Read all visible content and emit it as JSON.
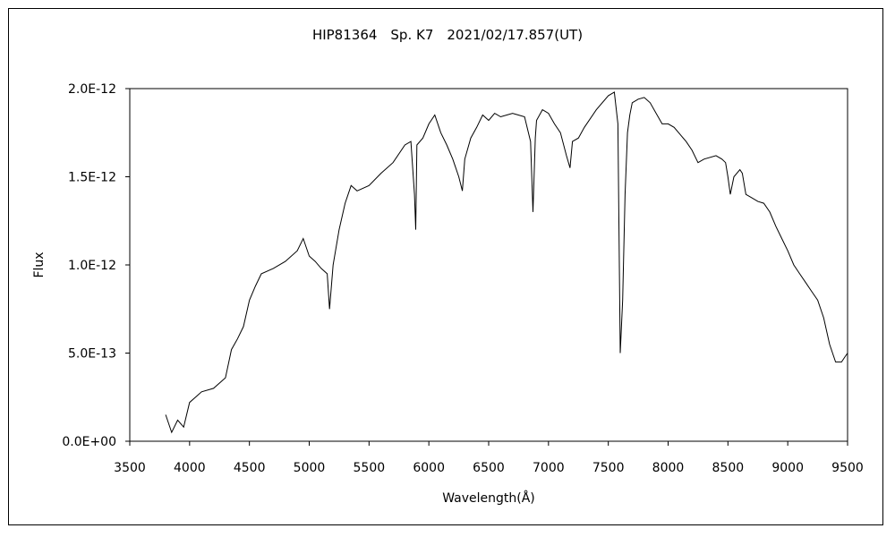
{
  "chart_data": {
    "type": "line",
    "title": "HIP81364　Sp. K7　2021/02/17.857(UT)",
    "xlabel": "Wavelength(Å)",
    "ylabel": "Flux",
    "xlim": [
      3500,
      9500
    ],
    "ylim": [
      0,
      2e-12
    ],
    "x_ticks": [
      3500,
      4000,
      4500,
      5000,
      5500,
      6000,
      6500,
      7000,
      7500,
      8000,
      8500,
      9000,
      9500
    ],
    "x_tick_labels": [
      "3500",
      "4000",
      "4500",
      "5000",
      "5500",
      "6000",
      "6500",
      "7000",
      "7500",
      "8000",
      "8500",
      "9000",
      "9500"
    ],
    "y_ticks": [
      0,
      5e-13,
      1e-12,
      1.5e-12,
      2e-12
    ],
    "y_tick_labels": [
      "0.0E+00",
      "5.0E-13",
      "1.0E-12",
      "1.5E-12",
      "2.0E-12"
    ],
    "grid": false,
    "line_color": "#000000",
    "series": [
      {
        "name": "",
        "x": [
          3800,
          3850,
          3900,
          3950,
          4000,
          4100,
          4200,
          4300,
          4350,
          4400,
          4450,
          4500,
          4550,
          4600,
          4700,
          4800,
          4900,
          4950,
          5000,
          5050,
          5100,
          5150,
          5170,
          5200,
          5250,
          5300,
          5350,
          5400,
          5500,
          5600,
          5700,
          5800,
          5850,
          5880,
          5890,
          5900,
          5950,
          6000,
          6050,
          6100,
          6150,
          6200,
          6250,
          6280,
          6300,
          6350,
          6400,
          6450,
          6500,
          6550,
          6600,
          6700,
          6800,
          6850,
          6870,
          6890,
          6900,
          6950,
          7000,
          7050,
          7100,
          7150,
          7180,
          7200,
          7250,
          7300,
          7400,
          7500,
          7550,
          7580,
          7600,
          7620,
          7640,
          7660,
          7680,
          7700,
          7750,
          7800,
          7850,
          7900,
          7950,
          8000,
          8050,
          8100,
          8150,
          8200,
          8250,
          8300,
          8400,
          8450,
          8480,
          8500,
          8520,
          8550,
          8600,
          8620,
          8650,
          8700,
          8750,
          8800,
          8850,
          8900,
          8950,
          9000,
          9050,
          9100,
          9150,
          9200,
          9250,
          9300,
          9350,
          9400,
          9450,
          9480,
          9500
        ],
        "y": [
          1.5e-13,
          5e-14,
          1.2e-13,
          8e-14,
          2.2e-13,
          2.8e-13,
          3e-13,
          3.6e-13,
          5.2e-13,
          5.8e-13,
          6.5e-13,
          8e-13,
          8.8e-13,
          9.5e-13,
          9.8e-13,
          1.02e-12,
          1.08e-12,
          1.15e-12,
          1.05e-12,
          1.02e-12,
          9.8e-13,
          9.5e-13,
          7.5e-13,
          1e-12,
          1.2e-12,
          1.35e-12,
          1.45e-12,
          1.42e-12,
          1.45e-12,
          1.52e-12,
          1.58e-12,
          1.68e-12,
          1.7e-12,
          1.4e-12,
          1.2e-12,
          1.68e-12,
          1.72e-12,
          1.8e-12,
          1.85e-12,
          1.75e-12,
          1.68e-12,
          1.6e-12,
          1.5e-12,
          1.42e-12,
          1.6e-12,
          1.72e-12,
          1.78e-12,
          1.85e-12,
          1.82e-12,
          1.86e-12,
          1.84e-12,
          1.86e-12,
          1.84e-12,
          1.7e-12,
          1.3e-12,
          1.72e-12,
          1.82e-12,
          1.88e-12,
          1.86e-12,
          1.8e-12,
          1.75e-12,
          1.62e-12,
          1.55e-12,
          1.7e-12,
          1.72e-12,
          1.78e-12,
          1.88e-12,
          1.96e-12,
          1.98e-12,
          1.8e-12,
          5e-13,
          8e-13,
          1.4e-12,
          1.75e-12,
          1.85e-12,
          1.92e-12,
          1.94e-12,
          1.95e-12,
          1.92e-12,
          1.86e-12,
          1.8e-12,
          1.8e-12,
          1.78e-12,
          1.74e-12,
          1.7e-12,
          1.65e-12,
          1.58e-12,
          1.6e-12,
          1.62e-12,
          1.6e-12,
          1.58e-12,
          1.5e-12,
          1.4e-12,
          1.5e-12,
          1.54e-12,
          1.52e-12,
          1.4e-12,
          1.38e-12,
          1.36e-12,
          1.35e-12,
          1.3e-12,
          1.22e-12,
          1.15e-12,
          1.08e-12,
          1e-12,
          9.5e-13,
          9e-13,
          8.5e-13,
          8e-13,
          7e-13,
          5.5e-13,
          4.5e-13,
          4.5e-13,
          4.8e-13,
          5e-13
        ]
      }
    ]
  }
}
